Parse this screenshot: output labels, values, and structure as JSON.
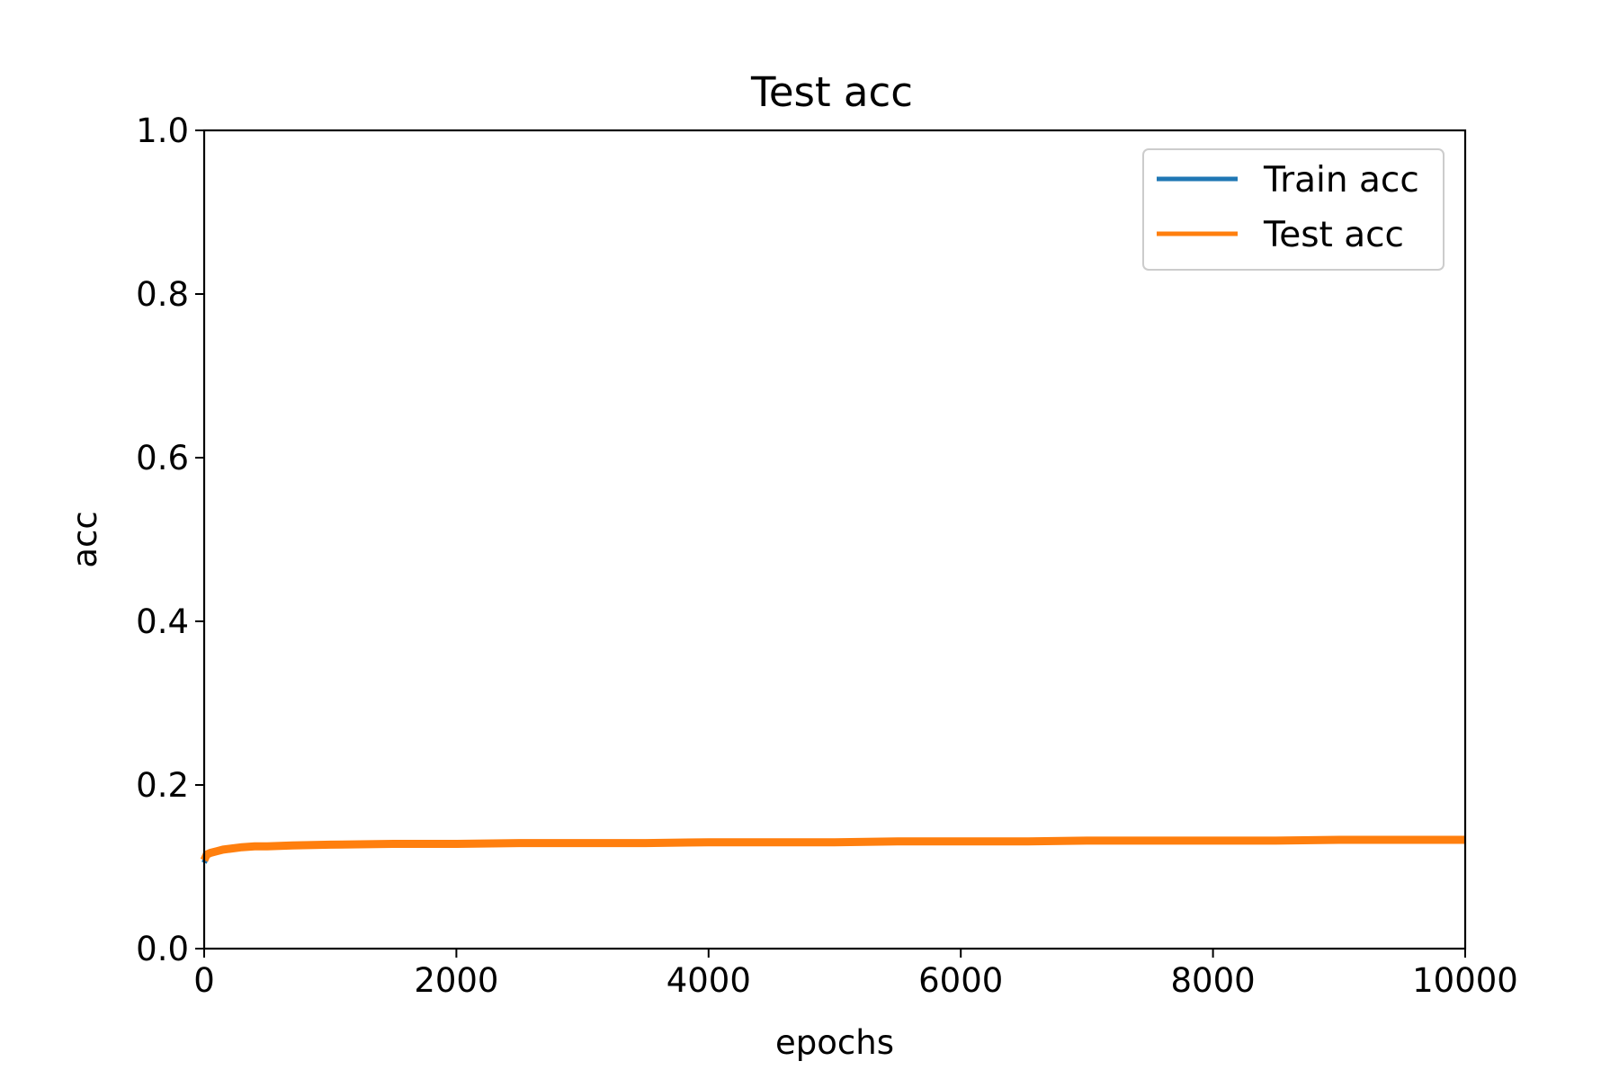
{
  "chart_data": {
    "type": "line",
    "title": "Test acc",
    "xlabel": "epochs",
    "ylabel": "acc",
    "xlim": [
      0,
      10000
    ],
    "ylim": [
      0.0,
      1.0
    ],
    "xticks": [
      0,
      2000,
      4000,
      6000,
      8000,
      10000
    ],
    "xtick_labels": [
      "0",
      "2000",
      "4000",
      "6000",
      "8000",
      "10000"
    ],
    "yticks": [
      0.0,
      0.2,
      0.4,
      0.6,
      0.8,
      1.0
    ],
    "ytick_labels": [
      "0.0",
      "0.2",
      "0.4",
      "0.6",
      "0.8",
      "1.0"
    ],
    "grid": false,
    "legend_position": "top-right",
    "series": [
      {
        "name": "Train acc",
        "color": "#1f77b4",
        "x": [
          0,
          20,
          50,
          100,
          150,
          200,
          300,
          400,
          500,
          700,
          1000,
          1500,
          2000,
          2500,
          3000,
          3500,
          4000,
          4500,
          5000,
          5500,
          6000,
          6500,
          7000,
          7500,
          8000,
          8500,
          9000,
          9500,
          10000
        ],
        "y": [
          0.105,
          0.113,
          0.116,
          0.118,
          0.12,
          0.121,
          0.123,
          0.124,
          0.125,
          0.126,
          0.127,
          0.128,
          0.128,
          0.129,
          0.129,
          0.13,
          0.13,
          0.13,
          0.13,
          0.131,
          0.131,
          0.131,
          0.131,
          0.131,
          0.132,
          0.132,
          0.132,
          0.132,
          0.132
        ]
      },
      {
        "name": "Test acc",
        "color": "#ff7f0e",
        "x": [
          0,
          20,
          50,
          100,
          150,
          200,
          300,
          400,
          500,
          700,
          1000,
          1500,
          2000,
          2500,
          3000,
          3500,
          4000,
          4500,
          5000,
          5500,
          6000,
          6500,
          7000,
          7500,
          8000,
          8500,
          9000,
          9500,
          10000
        ],
        "y": [
          0.108,
          0.115,
          0.117,
          0.119,
          0.121,
          0.122,
          0.124,
          0.125,
          0.125,
          0.126,
          0.127,
          0.128,
          0.128,
          0.129,
          0.129,
          0.129,
          0.13,
          0.13,
          0.13,
          0.131,
          0.131,
          0.131,
          0.132,
          0.132,
          0.132,
          0.132,
          0.133,
          0.133,
          0.133
        ]
      }
    ]
  }
}
